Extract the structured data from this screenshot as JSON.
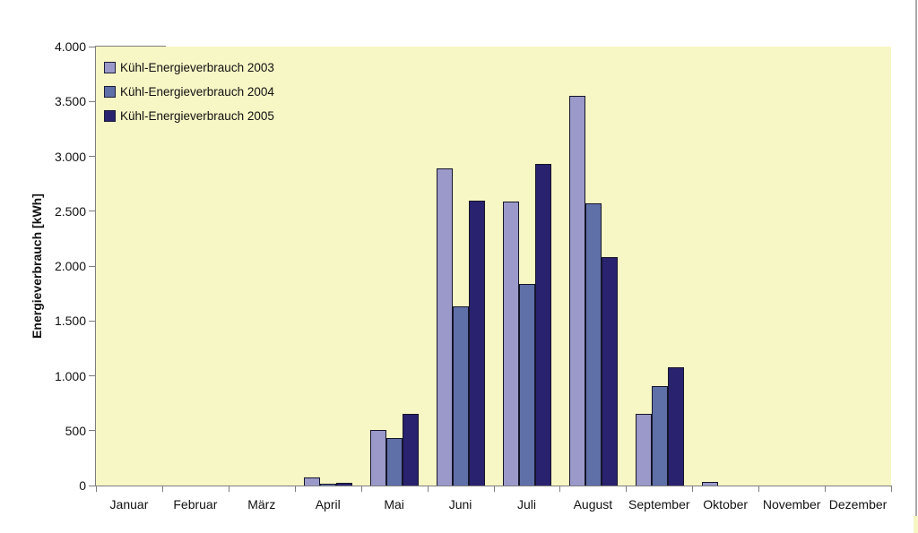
{
  "chart_data": {
    "type": "bar",
    "title": "",
    "xlabel": "",
    "ylabel": "Energieverbrauch [kWh]",
    "ylim": [
      0,
      4000
    ],
    "ytick_step": 500,
    "ytick_labels": [
      "0",
      "500",
      "1.000",
      "1.500",
      "2.000",
      "2.500",
      "3.000",
      "3.500",
      "4.000"
    ],
    "categories": [
      "Januar",
      "Februar",
      "März",
      "April",
      "Mai",
      "Juni",
      "Juli",
      "August",
      "September",
      "Oktober",
      "November",
      "Dezember"
    ],
    "series": [
      {
        "name": "Kühl-Energieverbrauch 2003",
        "year": "2003",
        "color": "#9a99c9",
        "values": [
          0,
          0,
          0,
          70,
          510,
          2890,
          2590,
          3550,
          650,
          30,
          0,
          0
        ]
      },
      {
        "name": "Kühl-Energieverbrauch 2004",
        "year": "2004",
        "color": "#5f6fa8",
        "values": [
          0,
          0,
          0,
          20,
          430,
          1630,
          1840,
          2570,
          910,
          0,
          0,
          0
        ]
      },
      {
        "name": "Kühl-Energieverbrauch 2005",
        "year": "2005",
        "color": "#29226e",
        "values": [
          0,
          0,
          0,
          25,
          650,
          2600,
          2930,
          2080,
          1080,
          0,
          0,
          0
        ]
      }
    ],
    "grid": false,
    "legend_position": "top-left-inside",
    "plot_bg": "#f7f6c5",
    "axis_color": "#7d7d7d",
    "bar_border_color": "#15152a"
  }
}
